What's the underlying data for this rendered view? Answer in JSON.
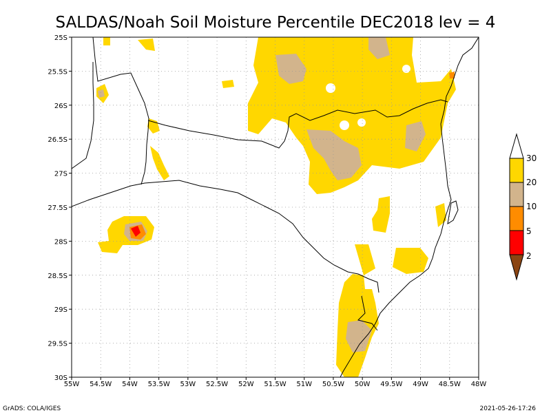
{
  "title": "SALDAS/Noah Soil Moisture Percentile DEC2018 lev = 4",
  "footer": {
    "left": "GrADS: COLA/IGES",
    "right": "2021-05-26-17:26"
  },
  "axes": {
    "x_labels": [
      "55W",
      "54.5W",
      "54W",
      "53.5W",
      "53W",
      "52.5W",
      "52W",
      "51.5W",
      "51W",
      "50.5W",
      "50W",
      "49.5W",
      "49W",
      "48.5W",
      "48W"
    ],
    "x_values": [
      -55,
      -54.5,
      -54,
      -53.5,
      -53,
      -52.5,
      -52,
      -51.5,
      -51,
      -50.5,
      -50,
      -49.5,
      -49,
      -48.5,
      -48
    ],
    "y_labels": [
      "25S",
      "25.5S",
      "26S",
      "26.5S",
      "27S",
      "27.5S",
      "28S",
      "28.5S",
      "29S",
      "29.5S",
      "30S"
    ],
    "y_values": [
      -25,
      -25.5,
      -26,
      -26.5,
      -27,
      -27.5,
      -28,
      -28.5,
      -29,
      -29.5,
      -30
    ],
    "lon_range": [
      -55,
      -48
    ],
    "lat_range": [
      -30,
      -25
    ],
    "grid": true
  },
  "legend": {
    "labels": [
      "30",
      "20",
      "10",
      "5",
      "2"
    ],
    "colors": {
      "above30": "#ffffff",
      "c20_30": "#ffd700",
      "c10_20": "#d2b48c",
      "c5_10": "#ff8c00",
      "c2_5": "#ff0000",
      "below2": "#8b4513"
    }
  }
}
